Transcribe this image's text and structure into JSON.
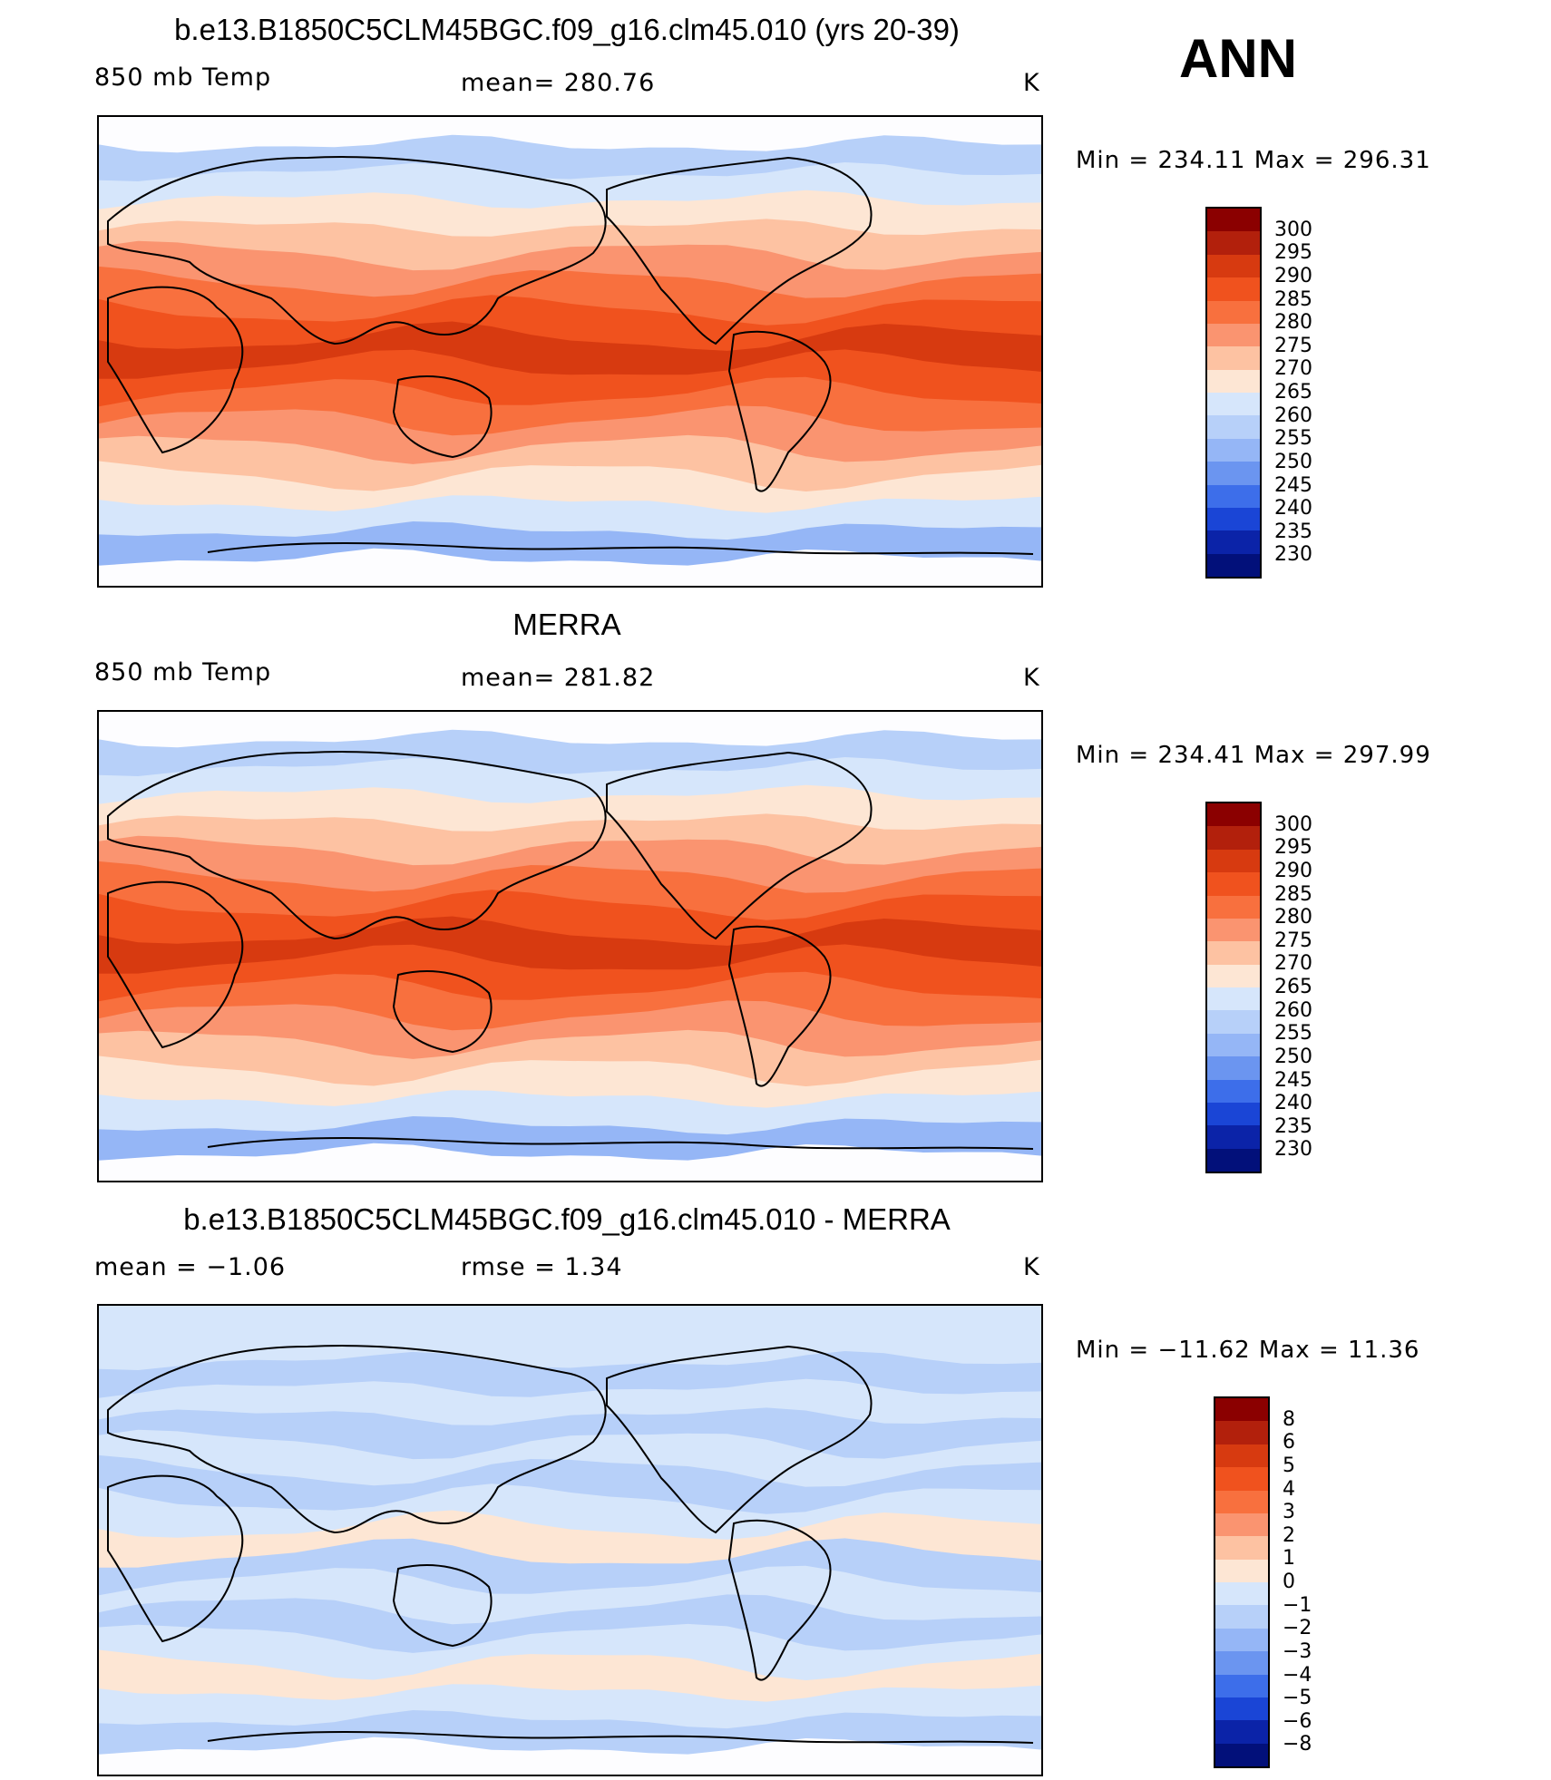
{
  "header": {
    "season": "ANN"
  },
  "panels": [
    {
      "title": "b.e13.B1850C5CLM45BGC.f09_g16.clm45.010 (yrs 20-39)",
      "left_label": "850 mb Temp",
      "center_label": "mean= 280.76",
      "unit": "K",
      "minmax": "Min = 234.11 Max = 296.31",
      "colorbar_labels": [
        "300",
        "295",
        "290",
        "285",
        "280",
        "275",
        "270",
        "265",
        "260",
        "255",
        "250",
        "245",
        "240",
        "235",
        "230"
      ],
      "colorbar_colors": [
        "#8b0000",
        "#b2200c",
        "#d73a10",
        "#f0521e",
        "#f8703e",
        "#fa9470",
        "#fdc2a2",
        "#fde6d4",
        "#d6e6fb",
        "#b7d0f9",
        "#95b6f6",
        "#6b95f0",
        "#3d6eea",
        "#1a45d6",
        "#0b23a8",
        "#02107a"
      ]
    },
    {
      "title": "MERRA",
      "left_label": "850 mb Temp",
      "center_label": "mean= 281.82",
      "unit": "K",
      "minmax": "Min = 234.41 Max = 297.99",
      "colorbar_labels": [
        "300",
        "295",
        "290",
        "285",
        "280",
        "275",
        "270",
        "265",
        "260",
        "255",
        "250",
        "245",
        "240",
        "235",
        "230"
      ],
      "colorbar_colors": [
        "#8b0000",
        "#b2200c",
        "#d73a10",
        "#f0521e",
        "#f8703e",
        "#fa9470",
        "#fdc2a2",
        "#fde6d4",
        "#d6e6fb",
        "#b7d0f9",
        "#95b6f6",
        "#6b95f0",
        "#3d6eea",
        "#1a45d6",
        "#0b23a8",
        "#02107a"
      ]
    },
    {
      "title": "b.e13.B1850C5CLM45BGC.f09_g16.clm45.010 - MERRA",
      "left_label": "mean = −1.06",
      "center_label": "rmse = 1.34",
      "unit": "K",
      "minmax": "Min = −11.62 Max = 11.36",
      "colorbar_labels": [
        "8",
        "6",
        "5",
        "4",
        "3",
        "2",
        "1",
        "0",
        "−1",
        "−2",
        "−3",
        "−4",
        "−5",
        "−6",
        "−8"
      ],
      "colorbar_colors": [
        "#8b0000",
        "#b2200c",
        "#d73a10",
        "#f0521e",
        "#f8703e",
        "#fa9470",
        "#fdc2a2",
        "#fde6d4",
        "#d6e6fb",
        "#b7d0f9",
        "#95b6f6",
        "#6b95f0",
        "#3d6eea",
        "#1a45d6",
        "#0b23a8",
        "#02107a"
      ]
    }
  ],
  "map_fields": [
    {
      "band_colors": [
        "#fdfdff",
        "#b7d0f9",
        "#d6e6fb",
        "#fde6d4",
        "#fdc2a2",
        "#fa9470",
        "#f8703e",
        "#f0521e",
        "#d73a10",
        "#f0521e",
        "#f8703e",
        "#fa9470",
        "#fdc2a2",
        "#fde6d4",
        "#d6e6fb",
        "#95b6f6",
        "#fdfdff"
      ]
    },
    {
      "band_colors": [
        "#fdfdff",
        "#b7d0f9",
        "#d6e6fb",
        "#fde6d4",
        "#fdc2a2",
        "#fa9470",
        "#f8703e",
        "#f0521e",
        "#d73a10",
        "#f0521e",
        "#f8703e",
        "#fa9470",
        "#fdc2a2",
        "#fde6d4",
        "#d6e6fb",
        "#95b6f6",
        "#fdfdff"
      ]
    },
    {
      "band_colors": [
        "#d6e6fb",
        "#d6e6fb",
        "#b7d0f9",
        "#d6e6fb",
        "#b7d0f9",
        "#d6e6fb",
        "#b7d0f9",
        "#d6e6fb",
        "#fde6d4",
        "#b7d0f9",
        "#d6e6fb",
        "#b7d0f9",
        "#d6e6fb",
        "#fde6d4",
        "#d6e6fb",
        "#b7d0f9",
        "#fdfdff"
      ]
    }
  ]
}
